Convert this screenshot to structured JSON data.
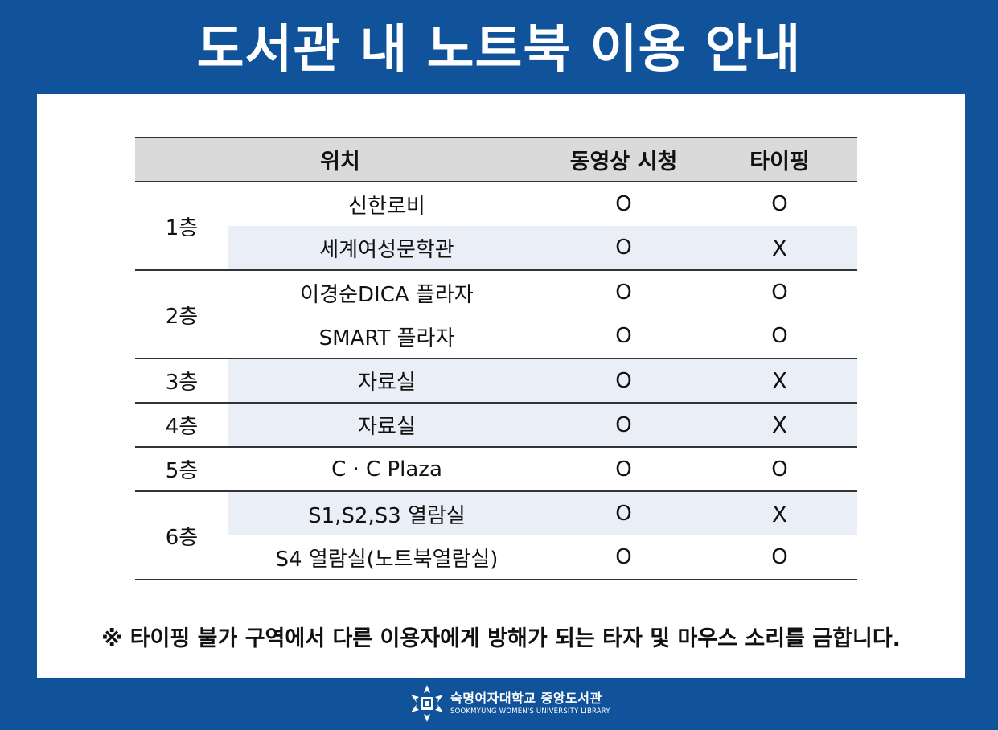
{
  "title": "도서관 내 노트북 이용 안내",
  "table": {
    "headers": {
      "location": "위치",
      "video": "동영상 시청",
      "typing": "타이핑"
    },
    "groups": [
      {
        "floor": "1층",
        "rows": [
          {
            "location": "신한로비",
            "video": "O",
            "typing": "O",
            "shaded": false
          },
          {
            "location": "세계여성문학관",
            "video": "O",
            "typing": "X",
            "shaded": true
          }
        ]
      },
      {
        "floor": "2층",
        "rows": [
          {
            "location": "이경순DICA 플라자",
            "video": "O",
            "typing": "O",
            "shaded": false
          },
          {
            "location": "SMART 플라자",
            "video": "O",
            "typing": "O",
            "shaded": false
          }
        ]
      },
      {
        "floor": "3층",
        "rows": [
          {
            "location": "자료실",
            "video": "O",
            "typing": "X",
            "shaded": true
          }
        ]
      },
      {
        "floor": "4층",
        "rows": [
          {
            "location": "자료실",
            "video": "O",
            "typing": "X",
            "shaded": true
          }
        ]
      },
      {
        "floor": "5층",
        "rows": [
          {
            "location": "C · C Plaza",
            "video": "O",
            "typing": "O",
            "shaded": false
          }
        ]
      },
      {
        "floor": "6층",
        "rows": [
          {
            "location": "S1,S2,S3 열람실",
            "video": "O",
            "typing": "X",
            "shaded": true
          },
          {
            "location": "S4 열람실(노트북열람실)",
            "video": "O",
            "typing": "O",
            "shaded": false
          }
        ]
      }
    ]
  },
  "note": "※ 타이핑 불가 구역에서 다른 이용자에게 방해가 되는 타자 및 마우스 소리를 금합니다.",
  "footer": {
    "logo_icon": "snowflake-emblem-icon",
    "name_ko": "숙명여자대학교 중앙도서관",
    "name_en": "SOOKMYUNG WOMEN'S UNIVERSITY LIBRARY"
  },
  "colors": {
    "background": "#10539a",
    "header_row": "#dadada",
    "shaded_row": "#eaeef6"
  }
}
